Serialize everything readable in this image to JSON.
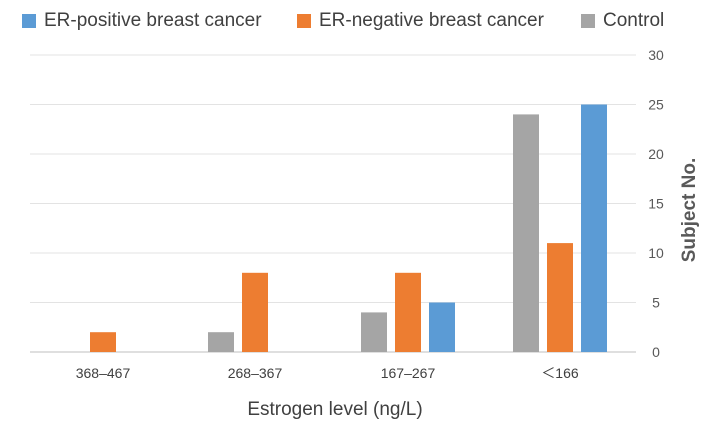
{
  "chart_data": {
    "type": "bar",
    "title": "",
    "xlabel": "Estrogen level (ng/L)",
    "ylabel": "Subject No.",
    "categories": [
      "368–467",
      "268–367",
      "167–267",
      "＜166"
    ],
    "series": [
      {
        "name": "Control",
        "color": "#a5a5a5",
        "values": [
          0,
          2,
          4,
          24
        ]
      },
      {
        "name": "ER-negative breast cancer",
        "color": "#ed7d31",
        "values": [
          2,
          8,
          8,
          11
        ]
      },
      {
        "name": "ER-positive breast cancer",
        "color": "#5b9bd5",
        "values": [
          0,
          0,
          5,
          25
        ]
      }
    ],
    "legend_order": [
      "ER-positive breast cancer",
      "ER-negative breast cancer",
      "Control"
    ],
    "yaxis_position": "right",
    "ylim": [
      0,
      30
    ],
    "yticks": [
      0,
      5,
      10,
      15,
      20,
      25,
      30
    ],
    "grid": true,
    "legend_position": "top"
  }
}
